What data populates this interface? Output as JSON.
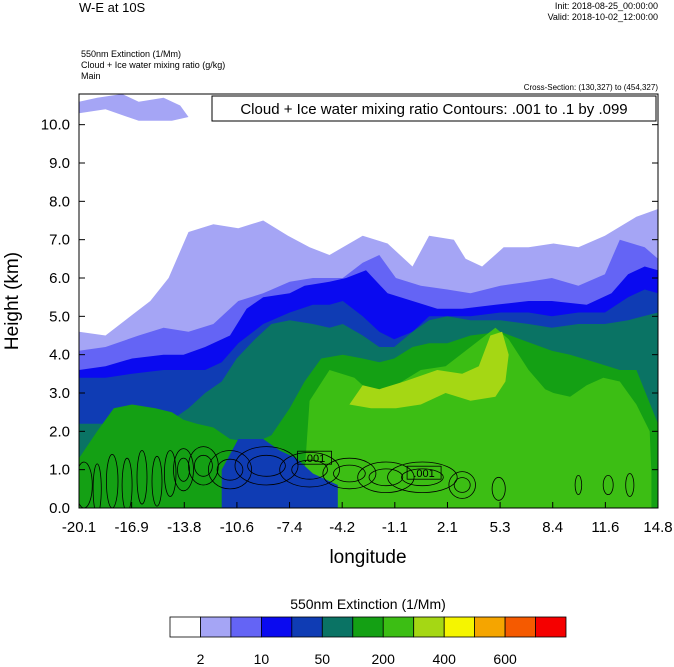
{
  "header": {
    "title": "W-E at 10S",
    "init": "Init: 2018-08-25_00:00:00",
    "valid": "Valid: 2018-10-02_12:00:00",
    "var_lines": [
      "550nm Extinction   (1/Mm)",
      "Cloud + Ice water mixing ratio   (g/kg)",
      "Main"
    ],
    "cross_section": "Cross-Section: (130,327) to (454,327)"
  },
  "chart_data": {
    "type": "heatmap",
    "title": "W-E at 10S",
    "xlabel": "longitude",
    "ylabel": "Height (km)",
    "xlim": [
      -20.1,
      14.8
    ],
    "ylim": [
      0.0,
      10.8
    ],
    "x_ticks": [
      "-20.1",
      "-16.9",
      "-13.8",
      "-10.6",
      "-7.4",
      "-4.2",
      "-1.1",
      "2.1",
      "5.3",
      "8.4",
      "11.6",
      "14.8"
    ],
    "y_ticks": [
      "0.0",
      "1.0",
      "2.0",
      "3.0",
      "4.0",
      "5.0",
      "6.0",
      "7.0",
      "8.0",
      "9.0",
      "10.0"
    ],
    "contour_info": "Cloud + Ice water mixing ratio Contours: .001 to .1 by .099",
    "contour_levels": [
      0.001,
      0.1
    ],
    "contour_labels": [
      ".001",
      ".001"
    ],
    "colorbar": {
      "title": "550nm Extinction  (1/Mm)",
      "labels": [
        "2",
        "10",
        "50",
        "200",
        "400",
        "600"
      ],
      "colors": [
        "#ffffff",
        "#a5a5f5",
        "#6464f5",
        "#0a0af0",
        "#0f3cb4",
        "#0a7364",
        "#14a014",
        "#3cbe14",
        "#a5d714",
        "#f5f500",
        "#f5a500",
        "#f55a00",
        "#f50000"
      ]
    },
    "regions": [
      {
        "name": "extinction-above-2",
        "color": "#a5a5f5",
        "top": [
          [
            -20.1,
            4.6
          ],
          [
            -18.5,
            4.5
          ],
          [
            -17.0,
            5.0
          ],
          [
            -15.8,
            5.4
          ],
          [
            -14.7,
            6.0
          ],
          [
            -13.5,
            7.2
          ],
          [
            -12.0,
            7.4
          ],
          [
            -10.5,
            7.3
          ],
          [
            -9.0,
            7.5
          ],
          [
            -7.5,
            7.1
          ],
          [
            -6.2,
            6.8
          ],
          [
            -5.0,
            6.6
          ],
          [
            -3.0,
            7.1
          ],
          [
            -1.5,
            6.9
          ],
          [
            0.0,
            6.3
          ],
          [
            1.0,
            7.1
          ],
          [
            2.5,
            7.0
          ],
          [
            3.2,
            6.5
          ],
          [
            4.2,
            6.3
          ],
          [
            5.5,
            6.8
          ],
          [
            7.0,
            6.8
          ],
          [
            8.5,
            6.9
          ],
          [
            10.0,
            6.8
          ],
          [
            11.6,
            7.1
          ],
          [
            13.5,
            7.6
          ],
          [
            14.8,
            7.8
          ]
        ]
      },
      {
        "name": "extinction-above-10",
        "color": "#6464f5",
        "top": [
          [
            -20.1,
            4.1
          ],
          [
            -18.5,
            4.2
          ],
          [
            -16.5,
            4.5
          ],
          [
            -15.0,
            4.7
          ],
          [
            -13.5,
            4.6
          ],
          [
            -12.0,
            4.8
          ],
          [
            -10.5,
            5.4
          ],
          [
            -9.0,
            5.6
          ],
          [
            -7.4,
            5.9
          ],
          [
            -6.0,
            6.0
          ],
          [
            -4.2,
            6.0
          ],
          [
            -3.0,
            6.4
          ],
          [
            -2.0,
            6.6
          ],
          [
            -1.0,
            6.0
          ],
          [
            0.5,
            5.8
          ],
          [
            2.1,
            5.7
          ],
          [
            3.5,
            5.6
          ],
          [
            5.3,
            5.8
          ],
          [
            7.0,
            5.9
          ],
          [
            8.4,
            6.0
          ],
          [
            10.0,
            5.8
          ],
          [
            11.6,
            6.1
          ],
          [
            12.5,
            7.0
          ],
          [
            14.0,
            6.8
          ],
          [
            14.8,
            6.5
          ]
        ]
      },
      {
        "name": "extinction-above-20",
        "color": "#0a0af0",
        "top": [
          [
            -20.1,
            3.6
          ],
          [
            -18.5,
            3.7
          ],
          [
            -16.9,
            3.9
          ],
          [
            -15.0,
            4.0
          ],
          [
            -13.8,
            4.0
          ],
          [
            -12.5,
            4.2
          ],
          [
            -11.0,
            4.5
          ],
          [
            -10.0,
            5.2
          ],
          [
            -9.0,
            5.5
          ],
          [
            -7.4,
            5.6
          ],
          [
            -6.5,
            5.8
          ],
          [
            -5.0,
            5.9
          ],
          [
            -4.0,
            6.0
          ],
          [
            -2.8,
            6.2
          ],
          [
            -1.5,
            5.6
          ],
          [
            0.0,
            5.4
          ],
          [
            1.5,
            5.2
          ],
          [
            3.0,
            5.2
          ],
          [
            5.0,
            5.3
          ],
          [
            7.0,
            5.4
          ],
          [
            8.4,
            5.4
          ],
          [
            10.5,
            5.3
          ],
          [
            12.0,
            5.6
          ],
          [
            13.0,
            6.1
          ],
          [
            14.0,
            6.3
          ],
          [
            14.8,
            6.2
          ]
        ]
      },
      {
        "name": "extinction-above-50",
        "color": "#0f3cb4",
        "top": [
          [
            -20.1,
            3.4
          ],
          [
            -18.5,
            3.4
          ],
          [
            -16.9,
            3.5
          ],
          [
            -15.0,
            3.6
          ],
          [
            -13.8,
            3.6
          ],
          [
            -12.5,
            3.6
          ],
          [
            -11.5,
            3.8
          ],
          [
            -10.5,
            4.3
          ],
          [
            -9.0,
            4.8
          ],
          [
            -7.4,
            5.1
          ],
          [
            -6.0,
            5.3
          ],
          [
            -5.0,
            5.3
          ],
          [
            -4.2,
            5.4
          ],
          [
            -3.0,
            5.0
          ],
          [
            -2.0,
            4.6
          ],
          [
            -1.1,
            4.4
          ],
          [
            0.0,
            4.6
          ],
          [
            1.0,
            5.0
          ],
          [
            2.1,
            5.0
          ],
          [
            3.5,
            5.0
          ],
          [
            5.3,
            5.1
          ],
          [
            7.0,
            5.1
          ],
          [
            8.4,
            5.0
          ],
          [
            10.0,
            5.1
          ],
          [
            11.6,
            5.1
          ],
          [
            13.0,
            5.5
          ],
          [
            14.0,
            5.7
          ],
          [
            14.8,
            5.6
          ]
        ]
      },
      {
        "name": "extinction-above-100",
        "color": "#0a7364",
        "top": [
          [
            -20.1,
            2.2
          ],
          [
            -18.5,
            2.2
          ],
          [
            -17.5,
            2.3
          ],
          [
            -16.0,
            2.4
          ],
          [
            -14.5,
            2.3
          ],
          [
            -13.5,
            2.6
          ],
          [
            -12.5,
            3.0
          ],
          [
            -11.5,
            3.3
          ],
          [
            -10.6,
            3.9
          ],
          [
            -9.5,
            4.4
          ],
          [
            -8.5,
            4.8
          ],
          [
            -7.4,
            4.9
          ],
          [
            -6.0,
            4.8
          ],
          [
            -5.0,
            4.7
          ],
          [
            -4.2,
            4.8
          ],
          [
            -3.0,
            4.5
          ],
          [
            -2.0,
            4.2
          ],
          [
            -1.1,
            4.2
          ],
          [
            0.0,
            4.6
          ],
          [
            1.0,
            4.9
          ],
          [
            2.1,
            5.0
          ],
          [
            3.5,
            4.9
          ],
          [
            5.3,
            4.9
          ],
          [
            7.0,
            4.8
          ],
          [
            8.4,
            4.7
          ],
          [
            10.0,
            4.8
          ],
          [
            11.6,
            4.8
          ],
          [
            13.0,
            4.9
          ],
          [
            14.8,
            5.1
          ]
        ]
      },
      {
        "name": "extinction-above-200",
        "color": "#14a014",
        "top": [
          [
            -20.1,
            1.3
          ],
          [
            -19.0,
            2.0
          ],
          [
            -18.0,
            2.6
          ],
          [
            -16.9,
            2.7
          ],
          [
            -15.5,
            2.6
          ],
          [
            -14.5,
            2.5
          ],
          [
            -13.8,
            2.3
          ],
          [
            -13.0,
            2.2
          ],
          [
            -12.0,
            2.1
          ],
          [
            -11.0,
            1.8
          ],
          [
            -9.5,
            1.7
          ],
          [
            -8.5,
            1.9
          ],
          [
            -7.4,
            2.6
          ],
          [
            -6.5,
            3.3
          ],
          [
            -5.5,
            3.9
          ],
          [
            -4.2,
            4.0
          ],
          [
            -3.0,
            3.9
          ],
          [
            -2.0,
            3.8
          ],
          [
            -1.1,
            3.9
          ],
          [
            0.0,
            4.2
          ],
          [
            1.0,
            4.3
          ],
          [
            2.1,
            4.3
          ],
          [
            3.5,
            4.5
          ],
          [
            5.3,
            4.6
          ],
          [
            6.5,
            4.4
          ],
          [
            8.4,
            4.1
          ],
          [
            9.5,
            4.0
          ],
          [
            11.0,
            3.8
          ],
          [
            12.5,
            3.6
          ],
          [
            13.5,
            3.6
          ],
          [
            14.8,
            2.2
          ]
        ]
      },
      {
        "name": "extinction-above-300",
        "color": "#3cbe14",
        "top": [
          [
            -6.5,
            0.9
          ],
          [
            -6.2,
            2.8
          ],
          [
            -5.0,
            3.6
          ],
          [
            -3.5,
            3.4
          ],
          [
            -2.5,
            3.0
          ],
          [
            -1.0,
            3.2
          ],
          [
            0.5,
            3.6
          ],
          [
            2.0,
            3.7
          ],
          [
            3.5,
            4.2
          ],
          [
            5.0,
            4.7
          ],
          [
            5.8,
            4.4
          ],
          [
            7.0,
            3.6
          ],
          [
            8.0,
            3.1
          ],
          [
            8.5,
            3.0
          ],
          [
            9.5,
            2.9
          ],
          [
            10.5,
            3.2
          ],
          [
            11.5,
            3.4
          ],
          [
            12.5,
            3.3
          ],
          [
            13.5,
            2.7
          ],
          [
            14.3,
            2.0
          ],
          [
            14.4,
            0.9
          ]
        ]
      },
      {
        "name": "extinction-above-400",
        "color": "#a5d714",
        "top": [
          [
            -3.8,
            2.7
          ],
          [
            -3.0,
            3.2
          ],
          [
            -2.0,
            3.1
          ],
          [
            -0.5,
            3.3
          ],
          [
            1.5,
            3.6
          ],
          [
            3.0,
            3.5
          ],
          [
            4.0,
            3.7
          ],
          [
            4.7,
            4.5
          ],
          [
            5.4,
            4.6
          ],
          [
            5.8,
            4.0
          ],
          [
            5.6,
            3.3
          ],
          [
            5.0,
            2.9
          ],
          [
            3.5,
            2.8
          ],
          [
            2.0,
            3.0
          ],
          [
            0.5,
            2.7
          ],
          [
            -1.0,
            2.6
          ],
          [
            -2.5,
            2.6
          ]
        ]
      },
      {
        "name": "extinction-near-surface-low",
        "color": "#0f3cb4",
        "top": [
          [
            -11.5,
            1.0
          ],
          [
            -10.5,
            1.8
          ],
          [
            -9.0,
            1.8
          ],
          [
            -8.0,
            1.5
          ],
          [
            -7.0,
            1.3
          ],
          [
            -6.0,
            0.9
          ],
          [
            -4.5,
            0.6
          ]
        ]
      },
      {
        "name": "extinction-high-cloud-top-left",
        "color": "#a5a5f5",
        "top": [
          [
            -20.1,
            10.6
          ],
          [
            -19.0,
            10.7
          ],
          [
            -17.5,
            10.8
          ],
          [
            -16.5,
            10.6
          ],
          [
            -15.0,
            10.7
          ],
          [
            -14.0,
            10.5
          ],
          [
            -13.5,
            10.2
          ],
          [
            -14.5,
            10.1
          ],
          [
            -16.5,
            10.1
          ],
          [
            -18.5,
            10.4
          ],
          [
            -20.1,
            10.3
          ]
        ]
      }
    ]
  }
}
